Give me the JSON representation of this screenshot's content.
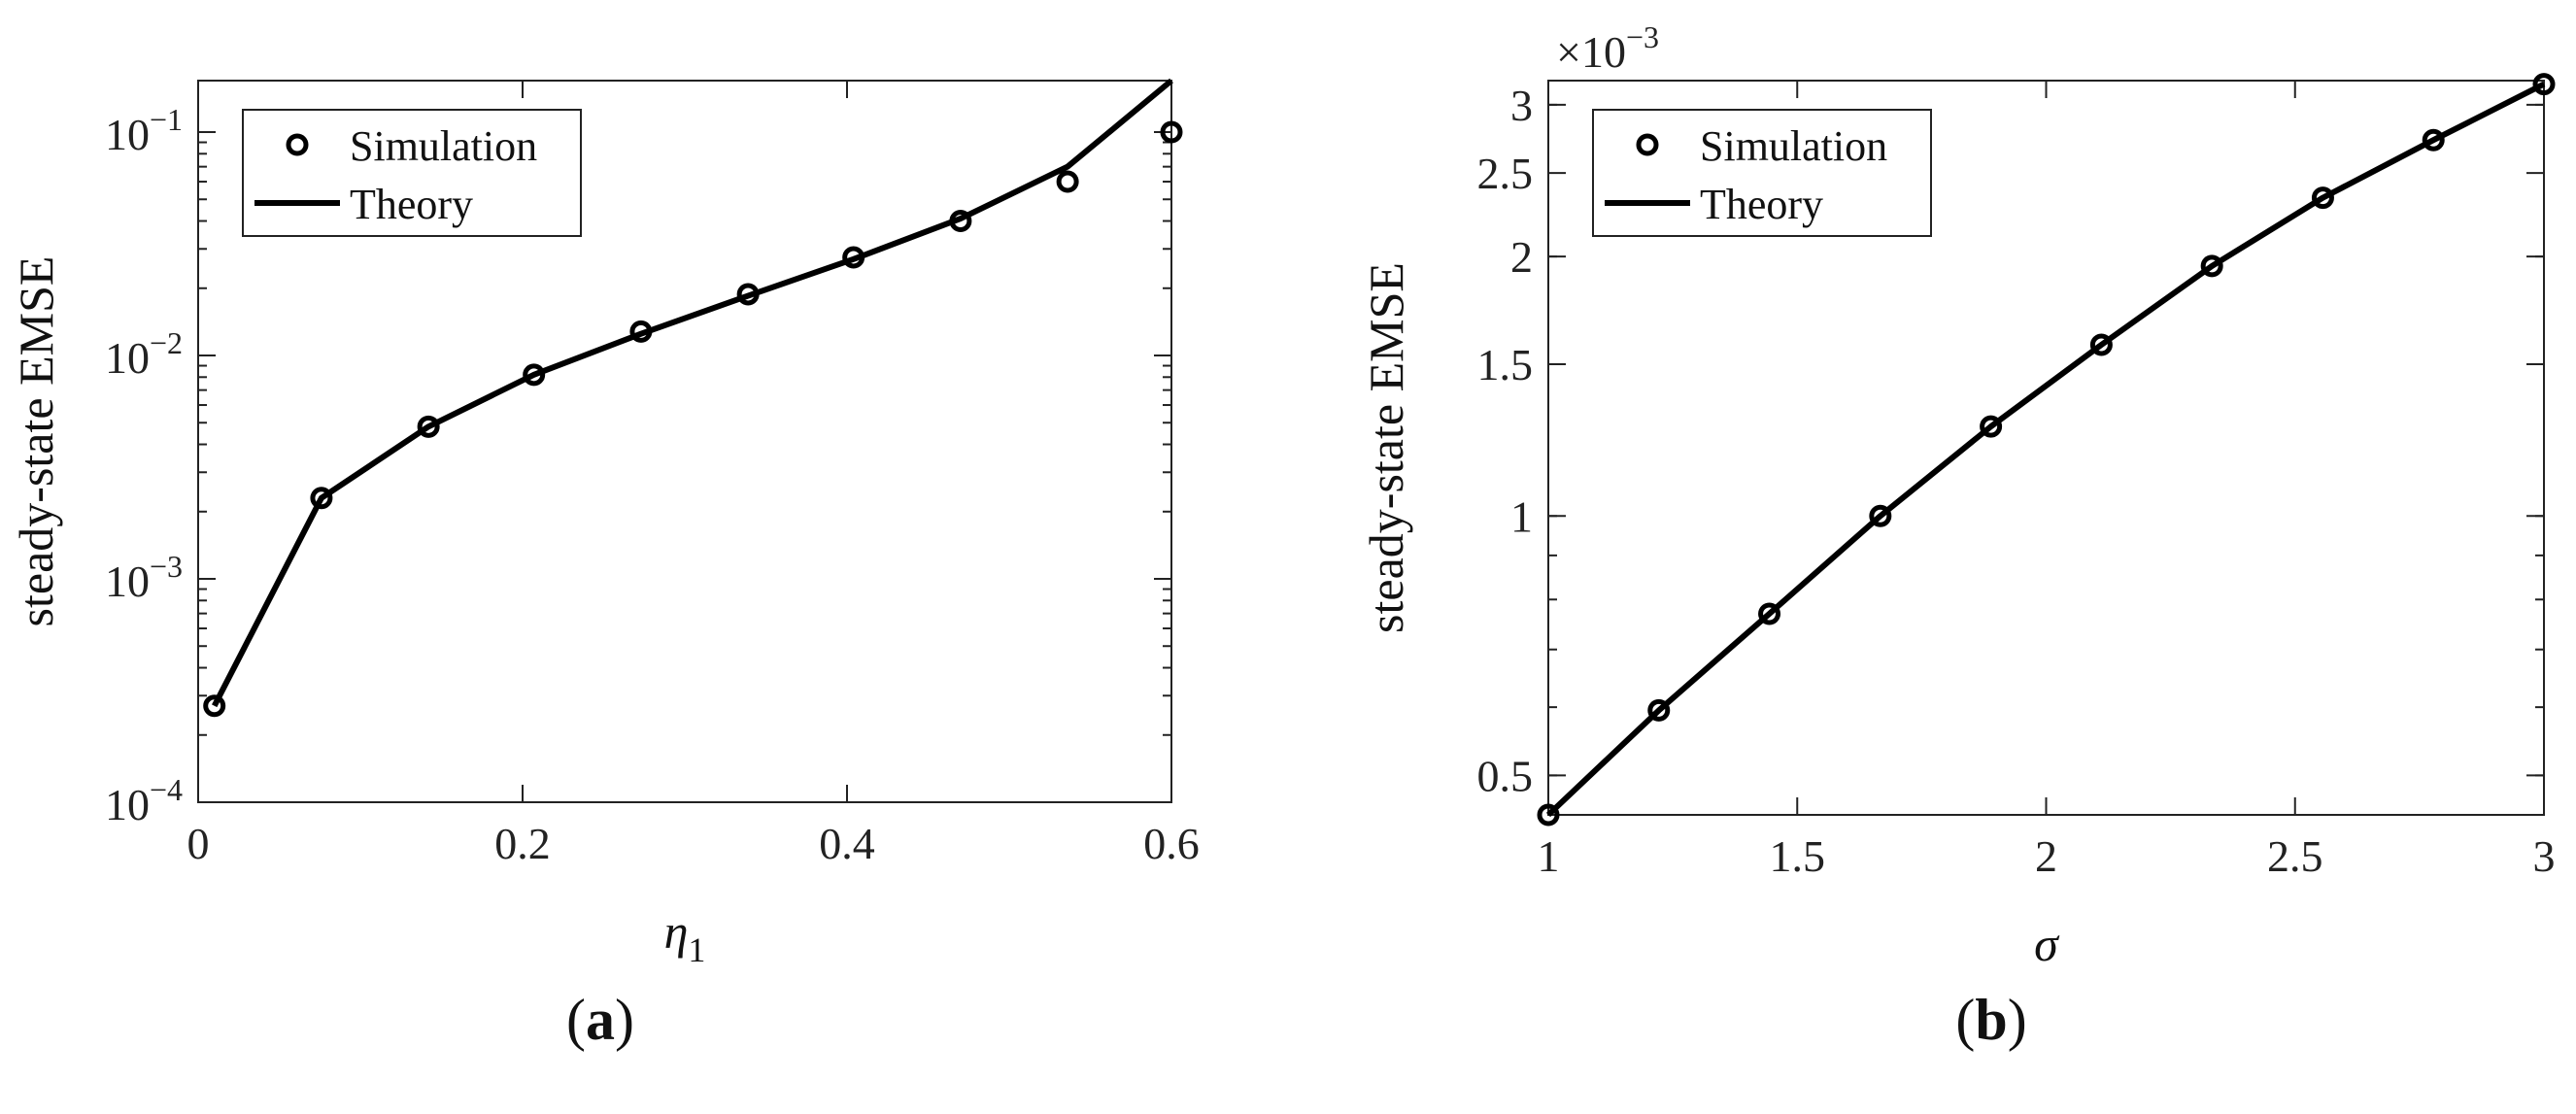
{
  "chart_data": [
    {
      "type": "line",
      "panel_label": "a",
      "xlabel": "η1",
      "ylabel": "steady-state EMSE",
      "xlim": [
        0,
        0.6
      ],
      "ylim": [
        0.0001,
        0.17
      ],
      "yscale": "log",
      "x_ticks": [
        0,
        0.2,
        0.4,
        0.6
      ],
      "x_tick_labels": [
        "0",
        "0.2",
        "0.4",
        "0.6"
      ],
      "y_ticks": [
        0.0001,
        0.001,
        0.01,
        0.1
      ],
      "y_tick_bases": [
        "10",
        "10",
        "10",
        "10"
      ],
      "y_tick_exps": [
        "−4",
        "−3",
        "−2",
        "−1"
      ],
      "legend": {
        "position": "top-left",
        "entries": [
          "Simulation",
          "Theory"
        ]
      },
      "series": [
        {
          "name": "Simulation",
          "marker": "circle",
          "x": [
            0.01,
            0.076,
            0.142,
            0.207,
            0.273,
            0.339,
            0.404,
            0.47,
            0.536,
            0.6
          ],
          "y": [
            0.00027,
            0.0023,
            0.0048,
            0.0082,
            0.0128,
            0.0188,
            0.0275,
            0.04,
            0.06,
            0.1
          ]
        },
        {
          "name": "Theory",
          "line": "solid",
          "x": [
            0.01,
            0.076,
            0.142,
            0.207,
            0.273,
            0.339,
            0.404,
            0.47,
            0.536,
            0.6
          ],
          "y": [
            0.00027,
            0.0023,
            0.0048,
            0.0082,
            0.0125,
            0.0185,
            0.027,
            0.041,
            0.07,
            0.17
          ]
        }
      ]
    },
    {
      "type": "line",
      "panel_label": "b",
      "xlabel": "σ",
      "ylabel": "steady-state EMSE",
      "axis_multiplier_base": "×10",
      "axis_multiplier_exp": "−3",
      "xlim": [
        1,
        3
      ],
      "ylim": [
        0.45,
        3.2
      ],
      "yscale": "log",
      "x_ticks": [
        1,
        1.5,
        2,
        2.5,
        3
      ],
      "x_tick_labels": [
        "1",
        "1.5",
        "2",
        "2.5",
        "3"
      ],
      "y_ticks": [
        0.5,
        1,
        1.5,
        2,
        2.5,
        3
      ],
      "y_tick_labels": [
        "0.5",
        "1",
        "1.5",
        "2",
        "2.5",
        "3"
      ],
      "legend": {
        "position": "top-left",
        "entries": [
          "Simulation",
          "Theory"
        ]
      },
      "series": [
        {
          "name": "Simulation",
          "marker": "circle",
          "x": [
            1,
            1.222,
            1.444,
            1.667,
            1.889,
            2.111,
            2.333,
            2.556,
            2.778,
            3
          ],
          "y": [
            0.45,
            0.595,
            0.77,
            1.0,
            1.27,
            1.58,
            1.95,
            2.34,
            2.73,
            3.17
          ]
        },
        {
          "name": "Theory",
          "line": "solid",
          "x": [
            1,
            1.222,
            1.444,
            1.667,
            1.889,
            2.111,
            2.333,
            2.556,
            2.778,
            3
          ],
          "y": [
            0.45,
            0.595,
            0.77,
            1.0,
            1.27,
            1.58,
            1.95,
            2.34,
            2.73,
            3.17
          ]
        }
      ]
    }
  ]
}
